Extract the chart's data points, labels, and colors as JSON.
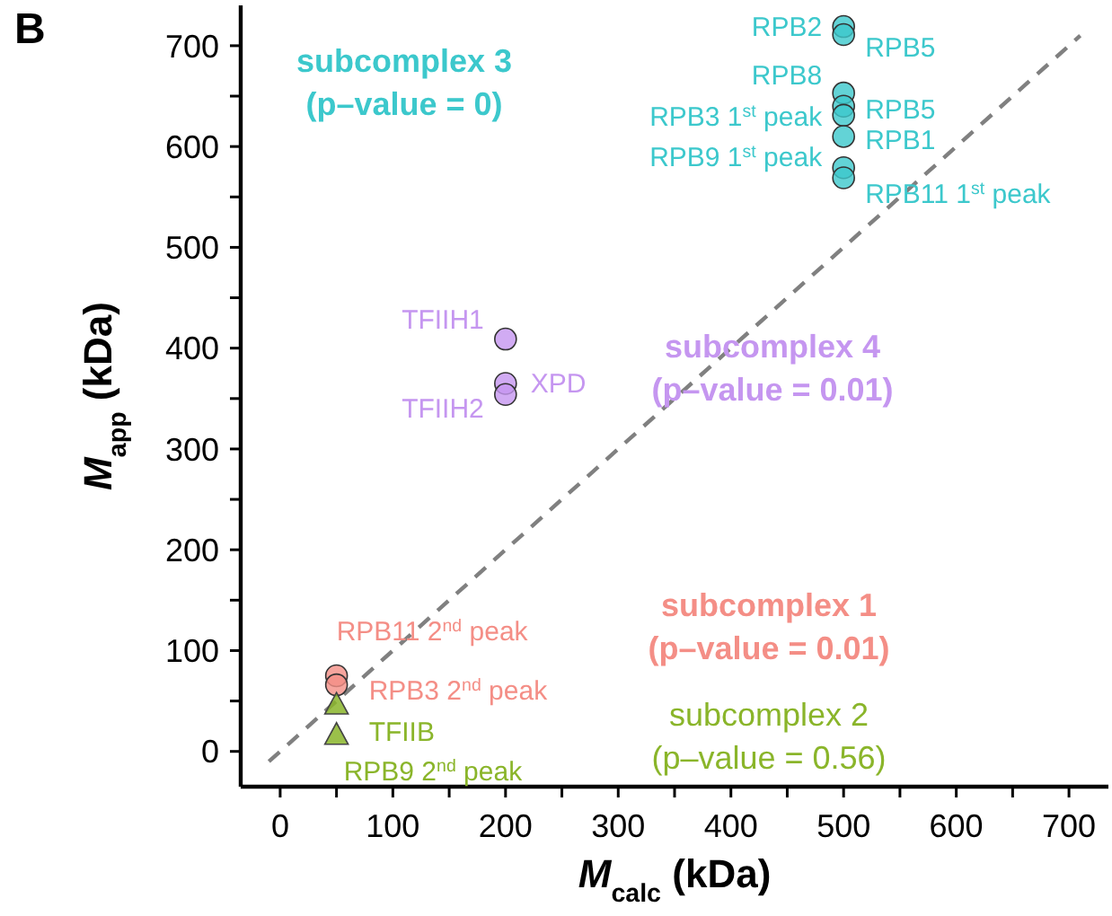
{
  "chart_data": {
    "type": "scatter",
    "title": "B",
    "xlabel": "M$_{calc}$ (kDa)",
    "ylabel": "M$_{app}$ (kDa)",
    "xlim": [
      -35,
      735
    ],
    "ylim": [
      -35,
      740
    ],
    "xticks": [
      0,
      {
        "value": 50,
        "label": null
      },
      100,
      {
        "value": 150,
        "label": null
      },
      200,
      {
        "value": 250,
        "label": null
      },
      300,
      {
        "value": 350,
        "label": null
      },
      400,
      {
        "value": 450,
        "label": null
      },
      500,
      {
        "value": 550,
        "label": null
      },
      600,
      {
        "value": 650,
        "label": null
      },
      700
    ],
    "yticks": [
      0,
      {
        "value": 50,
        "label": null
      },
      100,
      {
        "value": 150,
        "label": null
      },
      200,
      {
        "value": 250,
        "label": null
      },
      300,
      {
        "value": 350,
        "label": null
      },
      400,
      {
        "value": 450,
        "label": null
      },
      500,
      {
        "value": 550,
        "label": null
      },
      600,
      {
        "value": 650,
        "label": null
      },
      700
    ],
    "grid": false,
    "series": [
      {
        "type": "line",
        "color": "#808080",
        "line_style": "dashed",
        "marker": "none",
        "x": [
          -10,
          710
        ],
        "values": [
          -10,
          710
        ]
      },
      {
        "color": "#3cc8cc",
        "marker": "circle",
        "x": [
          500,
          500,
          500,
          500,
          500,
          500,
          500,
          500
        ],
        "values": [
          719,
          711,
          653,
          640,
          631,
          610,
          579,
          569
        ]
      },
      {
        "color": "#c596f0",
        "marker": "circle",
        "x": [
          200,
          200,
          200
        ],
        "values": [
          409,
          365,
          354
        ]
      },
      {
        "color": "#f48e86",
        "marker": "circle",
        "x": [
          50,
          50
        ],
        "values": [
          75,
          66
        ]
      },
      {
        "color": "#8ab52a",
        "marker": "triangle",
        "x": [
          50,
          50
        ],
        "values": [
          46,
          16
        ]
      }
    ],
    "annotations": [
      {
        "text": "RPB2",
        "x": 500,
        "y": 719
      },
      {
        "text": "RPB5",
        "x": 500,
        "y": 711
      },
      {
        "text": "RPB8",
        "x": 500,
        "y": 653
      },
      {
        "text": "RPB5",
        "x": 500,
        "y": 640
      },
      {
        "text": "RPB3 1$^{st}$ peak",
        "x": 500,
        "y": 631
      },
      {
        "text": "RPB1",
        "x": 500,
        "y": 610
      },
      {
        "text": "RPB9 1$^{st}$ peak",
        "x": 500,
        "y": 579
      },
      {
        "text": "RPB11 1$^{st}$ peak",
        "x": 500,
        "y": 569
      },
      {
        "text": "TFIIH1",
        "x": 200,
        "y": 409
      },
      {
        "text": "XPD",
        "x": 200,
        "y": 365
      },
      {
        "text": "TFIIH2",
        "x": 200,
        "y": 354
      },
      {
        "text": "RPB11 2$^{nd}$ peak",
        "x": 50,
        "y": 75
      },
      {
        "text": "RPB3 2$^{nd}$ peak",
        "x": 50,
        "y": 66
      },
      {
        "text": "TFIIB",
        "x": 50,
        "y": 46
      },
      {
        "text": "RPB9 2$^{nd}$ peak",
        "x": 50,
        "y": 16
      },
      "subcomplex 3 (p–value = 0)",
      "subcomplex 4 (p–value = 0.01)",
      "subcomplex 1 (p–value = 0.01)",
      "subcomplex 2 (p–value = 0.56)"
    ]
  }
}
